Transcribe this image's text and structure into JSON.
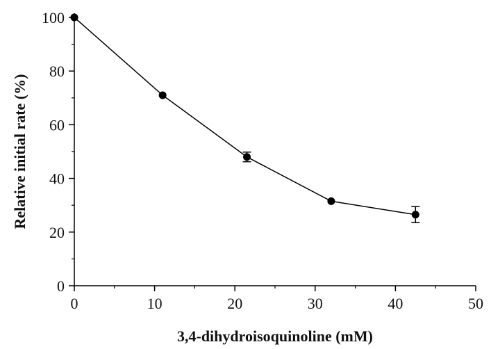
{
  "chart_data": {
    "type": "line",
    "title": "",
    "xlabel": "3,4-dihydroisoquinoline (mM)",
    "ylabel": "Relative initial rate (%)",
    "xlim": [
      0,
      50
    ],
    "ylim": [
      0,
      100
    ],
    "xticks": [
      0,
      10,
      20,
      30,
      40,
      50
    ],
    "yticks": [
      0,
      20,
      40,
      60,
      80,
      100
    ],
    "grid": false,
    "legend": "none",
    "series": [
      {
        "x": [
          0,
          11,
          21.5,
          32,
          42.5
        ],
        "y": [
          100,
          71,
          48,
          31.5,
          26.5
        ],
        "error": [
          0,
          0,
          1.8,
          0,
          3
        ],
        "color": "#000000"
      }
    ]
  }
}
